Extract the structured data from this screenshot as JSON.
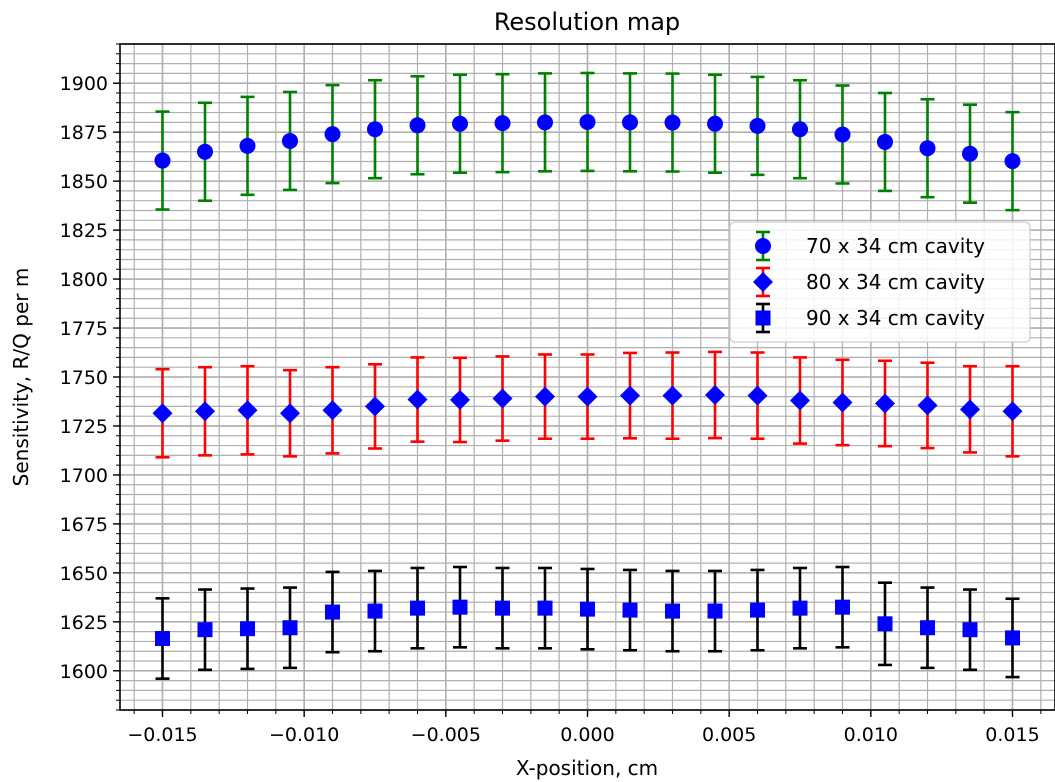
{
  "chart_data": {
    "type": "scatter",
    "title": "Resolution map",
    "xlabel": "X-position, cm",
    "ylabel": "Sensitivity, R/Q per m",
    "xlim": [
      -0.0165,
      0.0165
    ],
    "ylim": [
      1580,
      1920
    ],
    "x_ticks": [
      -0.015,
      -0.01,
      -0.005,
      0.0,
      0.005,
      0.01,
      0.015
    ],
    "x_tick_labels": [
      "−0.015",
      "−0.010",
      "−0.005",
      "0.000",
      "0.005",
      "0.010",
      "0.015"
    ],
    "y_ticks": [
      1600,
      1625,
      1650,
      1675,
      1700,
      1725,
      1750,
      1775,
      1800,
      1825,
      1850,
      1875,
      1900
    ],
    "y_tick_labels": [
      "1600",
      "1625",
      "1650",
      "1675",
      "1700",
      "1725",
      "1750",
      "1775",
      "1800",
      "1825",
      "1850",
      "1875",
      "1900"
    ],
    "grid": true,
    "minor_grid": true,
    "legend_position": "right",
    "x": [
      -0.015,
      -0.0135,
      -0.012,
      -0.0105,
      -0.009,
      -0.0075,
      -0.006,
      -0.0045,
      -0.003,
      -0.0015,
      0.0,
      0.0015,
      0.003,
      0.0045,
      0.006,
      0.0075,
      0.009,
      0.0105,
      0.012,
      0.0135,
      0.015
    ],
    "series": [
      {
        "name": "70 x 34 cm cavity",
        "marker": "circle",
        "marker_color": "#0000ff",
        "errorbar_color": "#008000",
        "values": [
          1860.5,
          1865.0,
          1868.0,
          1870.5,
          1874.0,
          1876.5,
          1878.5,
          1879.3,
          1879.6,
          1880.0,
          1880.2,
          1880.0,
          1879.9,
          1879.3,
          1878.2,
          1876.5,
          1873.8,
          1870.0,
          1866.8,
          1864.0,
          1860.2
        ],
        "errors": [
          25,
          25,
          25,
          25,
          25,
          25,
          25,
          25,
          25,
          25,
          25,
          25,
          25,
          25,
          25,
          25,
          25,
          25,
          25,
          25,
          25
        ]
      },
      {
        "name": "80 x 34 cm cavity",
        "marker": "diamond",
        "marker_color": "#0000ff",
        "errorbar_color": "#ff0000",
        "values": [
          1731.5,
          1732.5,
          1733.0,
          1731.5,
          1733.0,
          1735.0,
          1738.5,
          1738.3,
          1739.0,
          1740.0,
          1740.0,
          1740.5,
          1740.5,
          1740.8,
          1740.5,
          1738.0,
          1737.0,
          1736.5,
          1735.5,
          1733.5,
          1732.5
        ],
        "errors": [
          22.5,
          22.5,
          22.5,
          22,
          22,
          21.5,
          21.5,
          21.5,
          21.5,
          21.5,
          21.5,
          21.8,
          22,
          22,
          22,
          22,
          21.8,
          21.8,
          21.8,
          22,
          23
        ]
      },
      {
        "name": "90 x 34 cm cavity",
        "marker": "square",
        "marker_color": "#0000ff",
        "errorbar_color": "#000000",
        "values": [
          1616.5,
          1621.0,
          1621.5,
          1622.0,
          1630.0,
          1630.5,
          1632.0,
          1632.5,
          1632.0,
          1632.0,
          1631.5,
          1631.0,
          1630.5,
          1630.5,
          1631.0,
          1632.0,
          1632.5,
          1624.0,
          1622.0,
          1621.0,
          1616.8
        ],
        "errors": [
          20.5,
          20.5,
          20.5,
          20.5,
          20.5,
          20.5,
          20.5,
          20.5,
          20.5,
          20.5,
          20.5,
          20.5,
          20.5,
          20.5,
          20.5,
          20.5,
          20.5,
          21,
          20.5,
          20.5,
          20
        ]
      }
    ]
  }
}
